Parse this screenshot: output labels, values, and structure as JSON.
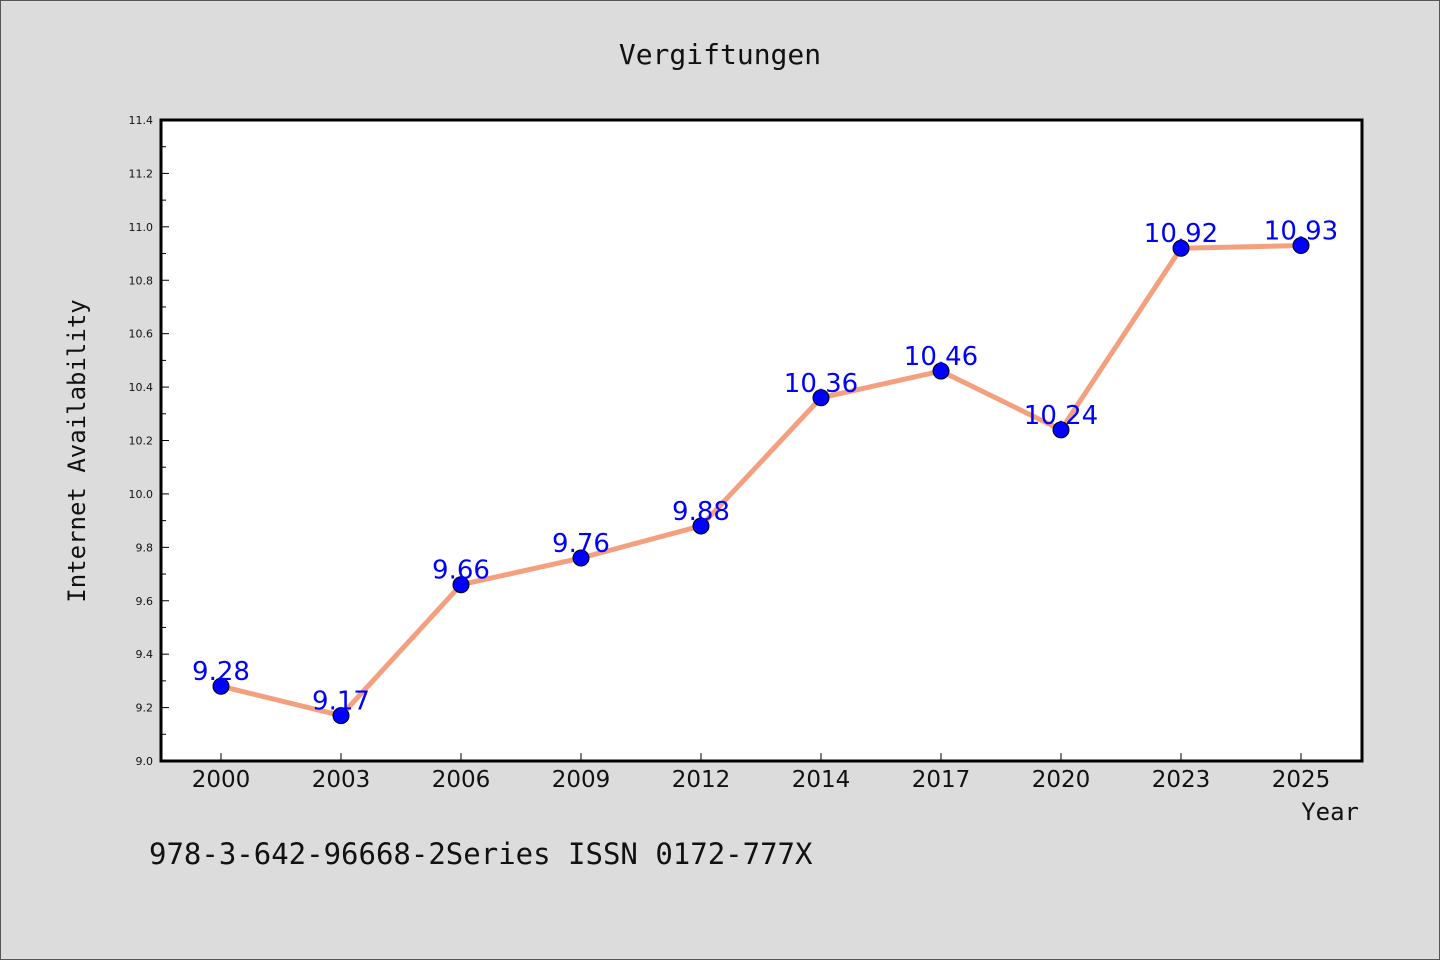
{
  "chart_data": {
    "type": "line",
    "title": "Vergiftungen",
    "xlabel": "Year",
    "ylabel": "Internet Availability",
    "categories": [
      "2000",
      "2003",
      "2006",
      "2009",
      "2012",
      "2014",
      "2017",
      "2020",
      "2023",
      "2025"
    ],
    "series": [
      {
        "values": [
          9.28,
          9.17,
          9.66,
          9.76,
          9.88,
          10.36,
          10.46,
          10.24,
          10.92,
          10.93
        ]
      }
    ],
    "data_labels": [
      "9.28",
      "9.17",
      "9.66",
      "9.76",
      "9.88",
      "10.36",
      "10.46",
      "10.24",
      "10.92",
      "10.93"
    ],
    "ylim": [
      9.0,
      11.4
    ],
    "yticks": [
      "9.0",
      "9.2",
      "9.4",
      "9.6",
      "9.8",
      "10.0",
      "10.2",
      "10.4",
      "10.6",
      "10.8",
      "11.0",
      "11.2",
      "11.4"
    ],
    "grid": false,
    "legend": "none",
    "colors": {
      "line": "#f4a07f",
      "marker": "#0000ff",
      "label": "#0000ff",
      "plot_bg": "#ffffff",
      "page_bg": "#dcdcdc"
    }
  },
  "footer_text": "978-3-642-96668-2Series ISSN 0172-777X"
}
